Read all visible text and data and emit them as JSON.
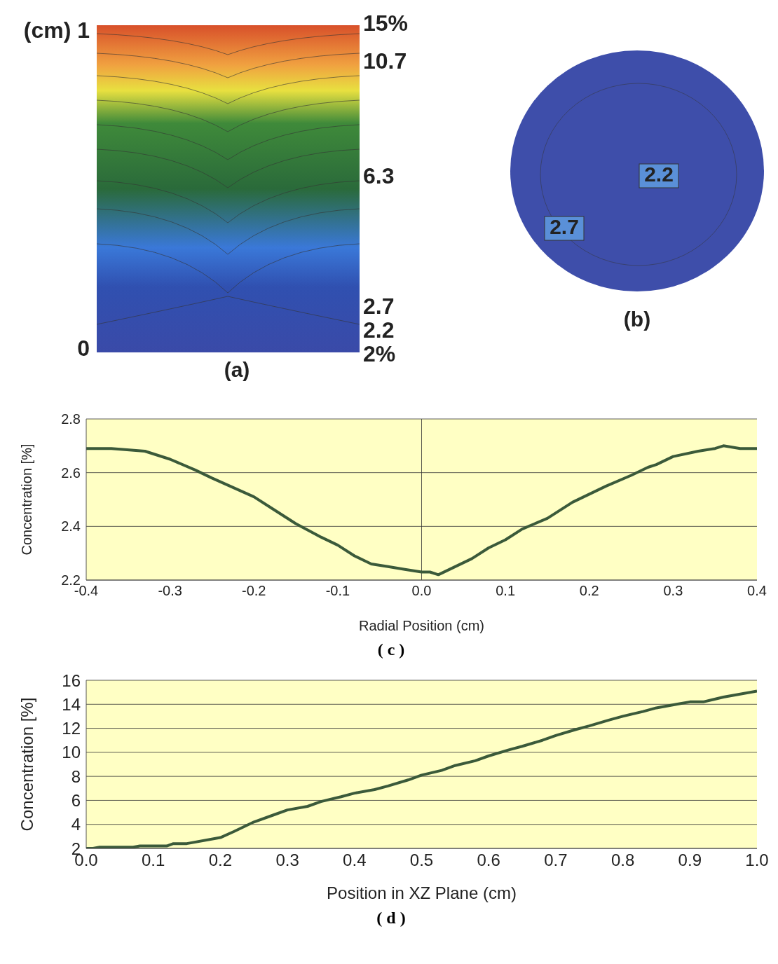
{
  "chart_data": [
    {
      "type": "other",
      "title": "(a)",
      "annotations": [
        "(cm) 1",
        "0",
        "15%",
        "10.7",
        "6.3",
        "2.7",
        "2.2",
        "2%"
      ]
    },
    {
      "type": "other",
      "title": "(b)",
      "annotations": [
        "2.2",
        "2.7"
      ]
    },
    {
      "type": "line",
      "title": "( c )",
      "xlabel": "Radial Position (cm)",
      "ylabel": "Concentration [%]",
      "x": [
        -0.4,
        -0.37,
        -0.33,
        -0.3,
        -0.27,
        -0.25,
        -0.2,
        -0.18,
        -0.15,
        -0.12,
        -0.1,
        -0.08,
        -0.06,
        -0.04,
        -0.02,
        0,
        0.01,
        0.02,
        0.04,
        0.06,
        0.08,
        0.1,
        0.12,
        0.15,
        0.18,
        0.2,
        0.22,
        0.25,
        0.27,
        0.28,
        0.3,
        0.33,
        0.35,
        0.36,
        0.38,
        0.4
      ],
      "series": [
        {
          "color": "#3b5a3a",
          "values": [
            2.69,
            2.69,
            2.68,
            2.65,
            2.61,
            2.58,
            2.51,
            2.47,
            2.41,
            2.36,
            2.33,
            2.29,
            2.26,
            2.25,
            2.24,
            2.23,
            2.23,
            2.22,
            2.25,
            2.28,
            2.32,
            2.35,
            2.39,
            2.43,
            2.49,
            2.52,
            2.55,
            2.59,
            2.62,
            2.63,
            2.66,
            2.68,
            2.69,
            2.7,
            2.69,
            2.69
          ]
        }
      ],
      "xlim": [
        -0.4,
        0.4
      ],
      "xticks": [
        {
          "value": -0.4,
          "label": "-0.4"
        },
        {
          "value": -0.3,
          "label": "-0.3"
        },
        {
          "value": -0.2,
          "label": "-0.2"
        },
        {
          "value": -0.1,
          "label": "-0.1"
        },
        {
          "value": 0,
          "label": "0.0"
        },
        {
          "value": 0.1,
          "label": "0.1"
        },
        {
          "value": 0.2,
          "label": "0.2"
        },
        {
          "value": 0.3,
          "label": "0.3"
        },
        {
          "value": 0.4,
          "label": "0.4"
        }
      ],
      "ylim": [
        2.2,
        2.8
      ],
      "yticks": [
        {
          "value": 2.2,
          "label": "2.2"
        },
        {
          "value": 2.4,
          "label": "2.4"
        },
        {
          "value": 2.6,
          "label": "2.6"
        },
        {
          "value": 2.8,
          "label": "2.8"
        }
      ],
      "grid": "y",
      "ref_lines": [
        {
          "axis": "x",
          "value": 0
        }
      ],
      "legend": false,
      "marker": "none",
      "line_style": "solid"
    },
    {
      "type": "line",
      "title": "( d )",
      "xlabel": "Position in XZ Plane (cm)",
      "ylabel": "Concentration [%]",
      "x": [
        0,
        0.01,
        0.02,
        0.07,
        0.08,
        0.12,
        0.13,
        0.15,
        0.2,
        0.22,
        0.25,
        0.28,
        0.3,
        0.33,
        0.35,
        0.38,
        0.4,
        0.43,
        0.45,
        0.48,
        0.5,
        0.53,
        0.55,
        0.58,
        0.6,
        0.63,
        0.65,
        0.68,
        0.7,
        0.73,
        0.75,
        0.78,
        0.8,
        0.83,
        0.85,
        0.88,
        0.9,
        0.92,
        0.95,
        1.0
      ],
      "series": [
        {
          "color": "#3b5a3a",
          "values": [
            2,
            2,
            2.1,
            2.1,
            2.2,
            2.2,
            2.4,
            2.4,
            2.9,
            3.4,
            4.2,
            4.8,
            5.2,
            5.5,
            5.9,
            6.3,
            6.6,
            6.9,
            7.2,
            7.7,
            8.1,
            8.5,
            8.9,
            9.3,
            9.7,
            10.2,
            10.5,
            11,
            11.4,
            11.9,
            12.2,
            12.7,
            13,
            13.4,
            13.7,
            14,
            14.2,
            14.2,
            14.6,
            15.1
          ]
        }
      ],
      "xlim": [
        0,
        1
      ],
      "xticks": [
        {
          "value": 0,
          "label": "0.0"
        },
        {
          "value": 0.1,
          "label": "0.1"
        },
        {
          "value": 0.2,
          "label": "0.2"
        },
        {
          "value": 0.3,
          "label": "0.3"
        },
        {
          "value": 0.4,
          "label": "0.4"
        },
        {
          "value": 0.5,
          "label": "0.5"
        },
        {
          "value": 0.6,
          "label": "0.6"
        },
        {
          "value": 0.7,
          "label": "0.7"
        },
        {
          "value": 0.8,
          "label": "0.8"
        },
        {
          "value": 0.9,
          "label": "0.9"
        },
        {
          "value": 1,
          "label": "1.0"
        }
      ],
      "ylim": [
        2,
        16
      ],
      "yticks": [
        2,
        4,
        6,
        8,
        10,
        12,
        14,
        16
      ],
      "grid": "y",
      "legend": false,
      "marker": "none",
      "line_style": "solid"
    }
  ]
}
